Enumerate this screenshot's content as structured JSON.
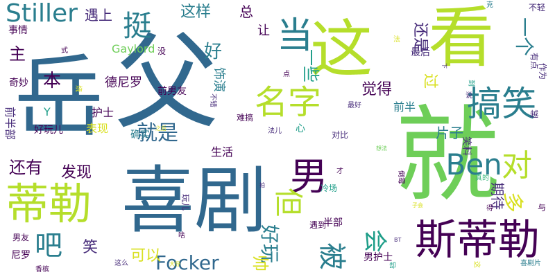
{
  "palette": {
    "purple": "#440154",
    "indigo": "#472c7a",
    "blue": "#31688e",
    "teal": "#2a7e8e",
    "tealgreen": "#1f9e89",
    "green": "#35b779",
    "lime": "#6ece58",
    "yellowgreen": "#b5de2b",
    "yellow": "#d9e021"
  },
  "words": [
    {
      "text": "就",
      "color": "lime"
    },
    {
      "text": "父",
      "color": "blue"
    },
    {
      "text": "岳",
      "color": "blue"
    },
    {
      "text": "这",
      "color": "yellowgreen"
    },
    {
      "text": "看",
      "color": "yellowgreen"
    },
    {
      "text": "喜剧",
      "color": "blue"
    },
    {
      "text": "斯蒂勒",
      "color": "purple"
    },
    {
      "text": "蒂勒",
      "color": "yellowgreen"
    },
    {
      "text": "当",
      "color": "teal"
    },
    {
      "text": "搞笑",
      "color": "teal"
    },
    {
      "text": "名字",
      "color": "yellowgreen"
    },
    {
      "text": "男",
      "color": "purple"
    },
    {
      "text": "对",
      "color": "yellowgreen"
    },
    {
      "text": "但",
      "color": "yellowgreen"
    },
    {
      "text": "被",
      "color": "teal"
    },
    {
      "text": "Ben",
      "color": "teal"
    },
    {
      "text": "挺",
      "color": "teal"
    },
    {
      "text": "Stiller",
      "color": "teal"
    },
    {
      "text": "吧",
      "color": "teal"
    },
    {
      "text": "会",
      "color": "tealgreen"
    },
    {
      "text": "就是",
      "color": "blue"
    },
    {
      "text": "好玩",
      "color": "teal"
    },
    {
      "text": "Focker",
      "color": "blue"
    },
    {
      "text": "一个",
      "color": "teal"
    },
    {
      "text": "还有",
      "color": "purple"
    },
    {
      "text": "这样",
      "color": "teal"
    },
    {
      "text": "一些",
      "color": "tealgreen"
    },
    {
      "text": "好",
      "color": "teal"
    },
    {
      "text": "本",
      "color": "purple"
    },
    {
      "text": "还是",
      "color": "indigo"
    },
    {
      "text": "发现",
      "color": "purple"
    },
    {
      "text": "多",
      "color": "yellow"
    },
    {
      "text": "期待",
      "color": "indigo"
    },
    {
      "text": "觉得",
      "color": "purple"
    },
    {
      "text": "片子",
      "color": "teal"
    },
    {
      "text": "过",
      "color": "yellow"
    },
    {
      "text": "德尼罗",
      "color": "purple"
    },
    {
      "text": "主",
      "color": "purple"
    },
    {
      "text": "笑",
      "color": "indigo"
    },
    {
      "text": "可以",
      "color": "yellow"
    },
    {
      "text": "帅",
      "color": "yellow"
    },
    {
      "text": "Gaylord",
      "color": "lime"
    },
    {
      "text": "遇上",
      "color": "indigo"
    },
    {
      "text": "总",
      "color": "purple"
    },
    {
      "text": "让",
      "color": "purple"
    },
    {
      "text": "饰演",
      "color": "teal"
    },
    {
      "text": "护士",
      "color": "purple"
    },
    {
      "text": "表现",
      "color": "yellow"
    },
    {
      "text": "生活",
      "color": "purple"
    },
    {
      "text": "前半部",
      "color": "indigo"
    },
    {
      "text": "好玩儿",
      "color": "purple"
    },
    {
      "text": "事情",
      "color": "purple"
    },
    {
      "text": "奇妙",
      "color": "purple"
    },
    {
      "text": "前男友",
      "color": "purple"
    },
    {
      "text": "确实",
      "color": "teal"
    },
    {
      "text": "前半",
      "color": "teal"
    },
    {
      "text": "最后",
      "color": "indigo"
    },
    {
      "text": "笑料",
      "color": "indigo"
    },
    {
      "text": "男护士",
      "color": "purple"
    },
    {
      "text": "半部",
      "color": "purple"
    },
    {
      "text": "尼罗",
      "color": "purple"
    },
    {
      "text": "男友",
      "color": "purple"
    },
    {
      "text": "不轻",
      "color": "indigo"
    },
    {
      "text": "有点",
      "color": "indigo"
    },
    {
      "text": "作为",
      "color": "indigo"
    },
    {
      "text": "越",
      "color": "indigo"
    },
    {
      "text": "与",
      "color": "purple"
    },
    {
      "text": "遇到",
      "color": "purple"
    },
    {
      "text": "冷场",
      "color": "tealgreen"
    },
    {
      "text": "玩儿",
      "color": "indigo"
    },
    {
      "text": "这么",
      "color": "indigo"
    },
    {
      "text": "对比",
      "color": "indigo"
    },
    {
      "text": "心",
      "color": "tealgreen"
    },
    {
      "text": "难搞",
      "color": "purple"
    },
    {
      "text": "没",
      "color": "purple"
    },
    {
      "text": "式",
      "color": "purple"
    },
    {
      "text": "Y",
      "color": "tealgreen"
    },
    {
      "text": "香槟",
      "color": "purple"
    },
    {
      "text": "啥",
      "color": "purple"
    },
    {
      "text": "才",
      "color": "purple"
    },
    {
      "text": "得",
      "color": "purple"
    },
    {
      "text": "说",
      "color": "indigo"
    },
    {
      "text": "喜剧片",
      "color": "teal"
    },
    {
      "text": "真的",
      "color": "green"
    },
    {
      "text": "克",
      "color": "teal"
    },
    {
      "text": "法",
      "color": "yellow"
    },
    {
      "text": "点",
      "color": "purple"
    },
    {
      "text": "最好",
      "color": "indigo"
    },
    {
      "text": "之后",
      "color": "yellow"
    },
    {
      "text": "法儿",
      "color": "indigo"
    },
    {
      "text": "不错",
      "color": "indigo"
    },
    {
      "text": "想法",
      "color": "lime"
    },
    {
      "text": "倒霉",
      "color": "purple"
    },
    {
      "text": "大导",
      "color": "yellow"
    },
    {
      "text": "子会",
      "color": "yellow"
    },
    {
      "text": "到",
      "color": "tealgreen"
    },
    {
      "text": "下",
      "color": "indigo"
    },
    {
      "text": "烧",
      "color": "yellow"
    },
    {
      "text": "拍",
      "color": "indigo"
    },
    {
      "text": "BT",
      "color": "indigo"
    },
    {
      "text": "这",
      "color": "yellow"
    },
    {
      "text": "却",
      "color": "tealgreen"
    }
  ]
}
